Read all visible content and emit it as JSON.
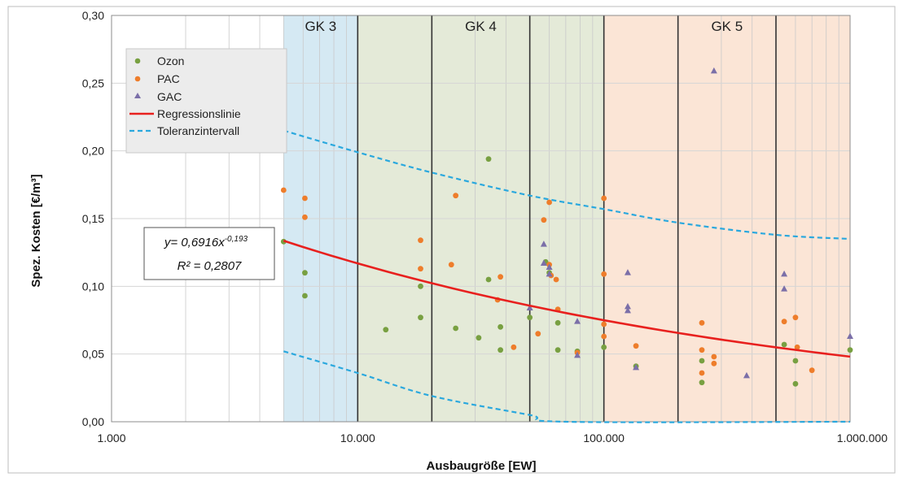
{
  "chart_data": {
    "type": "scatter",
    "xlabel": "Ausbaugröße [EW]",
    "ylabel": "Spez. Kosten [€/m³]",
    "x_scale": "log",
    "xlim": [
      1000,
      1000000
    ],
    "ylim": [
      0,
      0.3
    ],
    "x_ticks": [
      {
        "value": 1000,
        "label": "1.000"
      },
      {
        "value": 10000,
        "label": "10.000"
      },
      {
        "value": 100000,
        "label": "100.000"
      },
      {
        "value": 1000000,
        "label": "1.000.000"
      }
    ],
    "y_ticks": [
      {
        "value": 0.0,
        "label": "0,00"
      },
      {
        "value": 0.05,
        "label": "0,05"
      },
      {
        "value": 0.1,
        "label": "0,10"
      },
      {
        "value": 0.15,
        "label": "0,15"
      },
      {
        "value": 0.2,
        "label": "0,20"
      },
      {
        "value": 0.25,
        "label": "0,25"
      },
      {
        "value": 0.3,
        "label": "0,30"
      }
    ],
    "bands": [
      {
        "label": "GK 3",
        "x0": 5000,
        "x1": 10000,
        "color": "#d5e9f3"
      },
      {
        "label": "GK 4",
        "x0": 10000,
        "x1": 100000,
        "color": "#e4ead8"
      },
      {
        "label": "GK 5",
        "x0": 100000,
        "x1": 1000000,
        "color": "#fbe5d6"
      }
    ],
    "vertical_lines": [
      10000,
      20000,
      50000,
      100000,
      200000,
      500000
    ],
    "series": [
      {
        "name": "Ozon",
        "marker": "circle",
        "color": "#78a041",
        "points": [
          [
            5000,
            0.133
          ],
          [
            6100,
            0.11
          ],
          [
            6100,
            0.093
          ],
          [
            13000,
            0.068
          ],
          [
            18000,
            0.1
          ],
          [
            18000,
            0.077
          ],
          [
            25000,
            0.069
          ],
          [
            31000,
            0.062
          ],
          [
            34000,
            0.105
          ],
          [
            34000,
            0.194
          ],
          [
            38000,
            0.053
          ],
          [
            38000,
            0.07
          ],
          [
            50000,
            0.077
          ],
          [
            58000,
            0.118
          ],
          [
            60000,
            0.11
          ],
          [
            65000,
            0.053
          ],
          [
            65000,
            0.073
          ],
          [
            78000,
            0.052
          ],
          [
            100000,
            0.055
          ],
          [
            135000,
            0.041
          ],
          [
            250000,
            0.045
          ],
          [
            250000,
            0.029
          ],
          [
            540000,
            0.057
          ],
          [
            600000,
            0.045
          ],
          [
            600000,
            0.028
          ],
          [
            1000000,
            0.053
          ]
        ]
      },
      {
        "name": "PAC",
        "marker": "circle",
        "color": "#ee7d2b",
        "points": [
          [
            5000,
            0.171
          ],
          [
            6100,
            0.165
          ],
          [
            6100,
            0.151
          ],
          [
            18000,
            0.134
          ],
          [
            18000,
            0.113
          ],
          [
            24000,
            0.116
          ],
          [
            25000,
            0.167
          ],
          [
            37000,
            0.09
          ],
          [
            38000,
            0.107
          ],
          [
            43000,
            0.055
          ],
          [
            54000,
            0.065
          ],
          [
            57000,
            0.149
          ],
          [
            60000,
            0.162
          ],
          [
            60000,
            0.116
          ],
          [
            61000,
            0.108
          ],
          [
            64000,
            0.105
          ],
          [
            65000,
            0.083
          ],
          [
            78000,
            0.051
          ],
          [
            100000,
            0.165
          ],
          [
            100000,
            0.109
          ],
          [
            100000,
            0.072
          ],
          [
            100000,
            0.063
          ],
          [
            135000,
            0.056
          ],
          [
            250000,
            0.073
          ],
          [
            250000,
            0.053
          ],
          [
            250000,
            0.036
          ],
          [
            280000,
            0.048
          ],
          [
            280000,
            0.043
          ],
          [
            540000,
            0.074
          ],
          [
            600000,
            0.077
          ],
          [
            610000,
            0.055
          ],
          [
            700000,
            0.038
          ]
        ]
      },
      {
        "name": "GAC",
        "marker": "triangle",
        "color": "#7b6fa8",
        "points": [
          [
            57000,
            0.131
          ],
          [
            57000,
            0.117
          ],
          [
            60000,
            0.114
          ],
          [
            60000,
            0.109
          ],
          [
            50000,
            0.084
          ],
          [
            78000,
            0.074
          ],
          [
            78000,
            0.049
          ],
          [
            125000,
            0.11
          ],
          [
            125000,
            0.085
          ],
          [
            125000,
            0.082
          ],
          [
            135000,
            0.04
          ],
          [
            280000,
            0.259
          ],
          [
            380000,
            0.034
          ],
          [
            540000,
            0.109
          ],
          [
            540000,
            0.098
          ],
          [
            1000000,
            0.063
          ]
        ]
      }
    ],
    "regression": {
      "name": "Regressionslinie",
      "color": "#e8201e",
      "x_range": [
        5000,
        1000000
      ],
      "a": 0.6916,
      "b": -0.193
    },
    "tolerance": {
      "name": "Toleranzintervall",
      "color": "#2aa8de",
      "upper": [
        [
          5000,
          0.215
        ],
        [
          10000,
          0.199
        ],
        [
          20000,
          0.184
        ],
        [
          50000,
          0.167
        ],
        [
          100000,
          0.157
        ],
        [
          200000,
          0.147
        ],
        [
          500000,
          0.138
        ],
        [
          1000000,
          0.135
        ]
      ],
      "lower": [
        [
          5000,
          0.052
        ],
        [
          10000,
          0.036
        ],
        [
          20000,
          0.019
        ],
        [
          50000,
          0.005
        ],
        [
          70000,
          0.0
        ],
        [
          1000000,
          0.0
        ]
      ]
    },
    "annotation": {
      "line1_prefix": "y= 0,6916x",
      "line1_exp": "-0,193",
      "line2": "R² = 0,2807"
    },
    "legend": {
      "position": "top-left",
      "entries": [
        "Ozon",
        "PAC",
        "GAC",
        "Regressionslinie",
        "Toleranzintervall"
      ]
    }
  }
}
